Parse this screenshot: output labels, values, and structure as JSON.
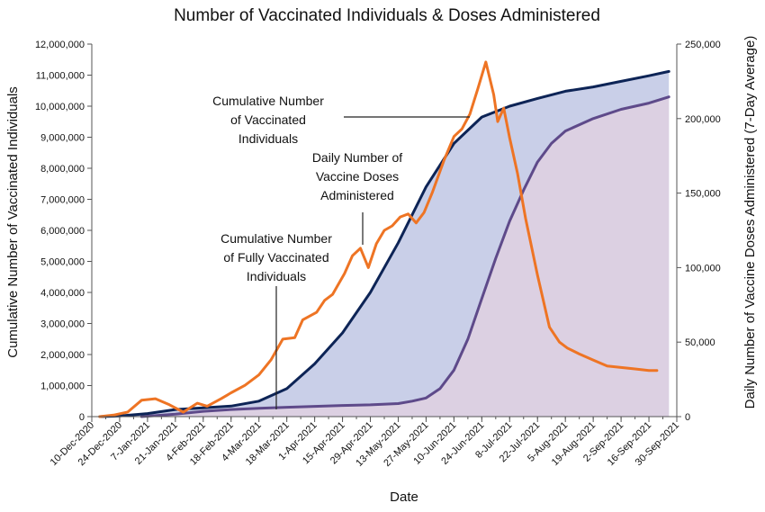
{
  "chart_data": {
    "type": "area",
    "title": "Number of Vaccinated Individuals & Doses Administered",
    "xlabel": "Date",
    "ylabel": "Cumulative Number of Vaccinated Individuals",
    "y2label": "Daily Number of Vaccine Doses Administered (7-Day Average)",
    "ylim": [
      0,
      12000000
    ],
    "y2lim": [
      0,
      250000
    ],
    "grid": false,
    "legend": "none",
    "x_ticks": [
      "10-Dec-2020",
      "24-Dec-2020",
      "7-Jan-2021",
      "21-Jan-2021",
      "4-Feb-2021",
      "18-Feb-2021",
      "4-Mar-2021",
      "18-Mar-2021",
      "1-Apr-2021",
      "15-Apr-2021",
      "29-Apr-2021",
      "13-May-2021",
      "27-May-2021",
      "10-Jun-2021",
      "24-Jun-2021",
      "8-Jul-2021",
      "22-Jul-2021",
      "5-Aug-2021",
      "19-Aug-2021",
      "2-Sep-2021",
      "16-Sep-2021",
      "30-Sep-2021"
    ],
    "y_ticks": [
      "0",
      "1,000,000",
      "2,000,000",
      "3,000,000",
      "4,000,000",
      "5,000,000",
      "6,000,000",
      "7,000,000",
      "8,000,000",
      "9,000,000",
      "10,000,000",
      "11,000,000",
      "12,000,000"
    ],
    "y_tick_values": [
      0,
      1000000,
      2000000,
      3000000,
      4000000,
      5000000,
      6000000,
      7000000,
      8000000,
      9000000,
      10000000,
      11000000,
      12000000
    ],
    "y2_ticks": [
      "0",
      "50,000",
      "100,000",
      "150,000",
      "200,000",
      "250,000"
    ],
    "y2_tick_values": [
      0,
      50000,
      100000,
      150000,
      200000,
      250000
    ],
    "series": [
      {
        "id": "vaccinated",
        "axis": "left",
        "style": "area",
        "color": "#0d2456",
        "fill": "#c9cfe8",
        "x": [
          "2020-12-14",
          "2020-12-24",
          "2021-01-07",
          "2021-01-21",
          "2021-02-04",
          "2021-02-18",
          "2021-03-04",
          "2021-03-18",
          "2021-04-01",
          "2021-04-15",
          "2021-04-29",
          "2021-05-13",
          "2021-05-27",
          "2021-06-10",
          "2021-06-24",
          "2021-07-08",
          "2021-07-22",
          "2021-08-05",
          "2021-08-19",
          "2021-09-02",
          "2021-09-16",
          "2021-09-26"
        ],
        "y": [
          0,
          20000,
          100000,
          230000,
          280000,
          340000,
          500000,
          900000,
          1700000,
          2700000,
          4000000,
          5600000,
          7400000,
          8800000,
          9650000,
          10000000,
          10250000,
          10480000,
          10620000,
          10800000,
          10980000,
          11120000
        ]
      },
      {
        "id": "fully-vaccinated",
        "axis": "left",
        "style": "area",
        "color": "#5e4a8a",
        "fill": "#dcd0e2",
        "x": [
          "2021-01-04",
          "2021-01-21",
          "2021-02-04",
          "2021-02-18",
          "2021-03-04",
          "2021-03-18",
          "2021-04-01",
          "2021-04-15",
          "2021-04-29",
          "2021-05-13",
          "2021-05-20",
          "2021-05-27",
          "2021-06-03",
          "2021-06-10",
          "2021-06-17",
          "2021-06-24",
          "2021-07-01",
          "2021-07-08",
          "2021-07-15",
          "2021-07-22",
          "2021-07-29",
          "2021-08-05",
          "2021-08-19",
          "2021-09-02",
          "2021-09-16",
          "2021-09-26"
        ],
        "y": [
          0,
          80000,
          170000,
          230000,
          270000,
          300000,
          330000,
          360000,
          380000,
          420000,
          500000,
          600000,
          900000,
          1500000,
          2500000,
          3800000,
          5100000,
          6300000,
          7300000,
          8200000,
          8800000,
          9200000,
          9600000,
          9900000,
          10100000,
          10300000
        ]
      },
      {
        "id": "daily-doses",
        "axis": "right",
        "style": "line",
        "color": "#ee7424",
        "x": [
          "2020-12-14",
          "2020-12-21",
          "2020-12-28",
          "2021-01-04",
          "2021-01-11",
          "2021-01-18",
          "2021-01-25",
          "2021-02-01",
          "2021-02-06",
          "2021-02-13",
          "2021-02-18",
          "2021-02-25",
          "2021-03-04",
          "2021-03-10",
          "2021-03-16",
          "2021-03-22",
          "2021-03-26",
          "2021-04-02",
          "2021-04-06",
          "2021-04-10",
          "2021-04-16",
          "2021-04-20",
          "2021-04-24",
          "2021-04-28",
          "2021-05-02",
          "2021-05-06",
          "2021-05-10",
          "2021-05-14",
          "2021-05-18",
          "2021-05-22",
          "2021-05-26",
          "2021-05-30",
          "2021-06-05",
          "2021-06-10",
          "2021-06-14",
          "2021-06-18",
          "2021-06-22",
          "2021-06-26",
          "2021-06-30",
          "2021-07-02",
          "2021-07-05",
          "2021-07-08",
          "2021-07-12",
          "2021-07-16",
          "2021-07-22",
          "2021-07-28",
          "2021-08-02",
          "2021-08-06",
          "2021-08-12",
          "2021-08-19",
          "2021-08-26",
          "2021-09-02",
          "2021-09-09",
          "2021-09-16",
          "2021-09-20"
        ],
        "y": [
          0,
          1000,
          3000,
          11000,
          12000,
          8000,
          3000,
          9000,
          7000,
          12000,
          16000,
          21000,
          28000,
          38000,
          52000,
          53000,
          65000,
          70000,
          78000,
          82000,
          96000,
          108000,
          113000,
          100000,
          116000,
          125000,
          128000,
          134000,
          136000,
          130000,
          137000,
          150000,
          172000,
          188000,
          193000,
          203000,
          220000,
          238000,
          216000,
          198000,
          207000,
          187000,
          163000,
          133000,
          95000,
          60000,
          50000,
          46000,
          42000,
          38000,
          34000,
          33000,
          32000,
          31000,
          31000
        ]
      }
    ],
    "annotations": [
      {
        "text_lines": [
          "Cumulative Number",
          "of Vaccinated",
          "Individuals"
        ],
        "target_series": "vaccinated"
      },
      {
        "text_lines": [
          "Daily Number of",
          "Vaccine Doses",
          "Administered"
        ],
        "target_series": "daily-doses"
      },
      {
        "text_lines": [
          "Cumulative Number",
          "of Fully Vaccinated",
          "Individuals"
        ],
        "target_series": "fully-vaccinated"
      }
    ]
  }
}
